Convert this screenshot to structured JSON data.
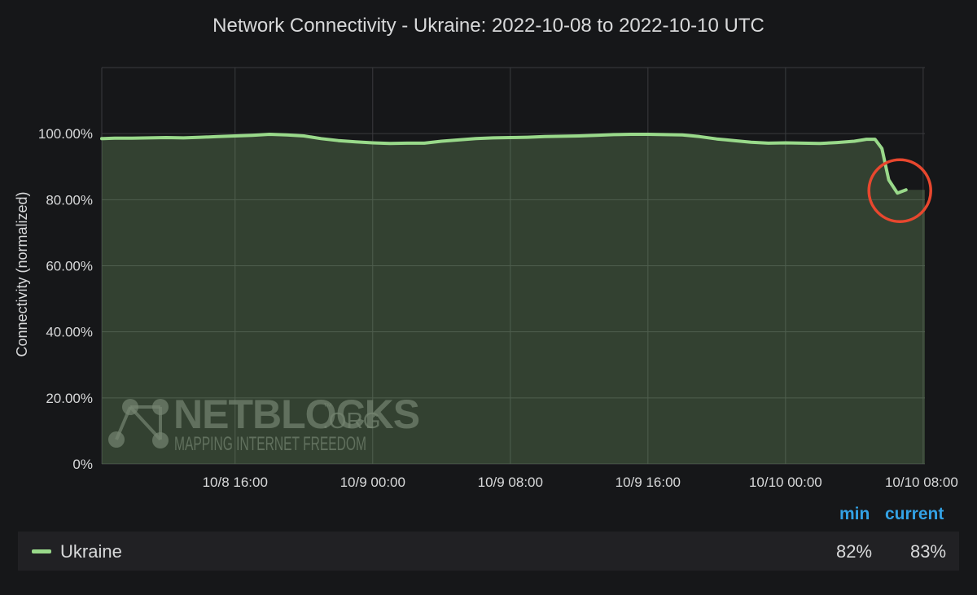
{
  "chart_data": {
    "type": "area",
    "title": "Network Connectivity - Ukraine: 2022-10-08 to 2022-10-10 UTC",
    "ylabel": "Connectivity (normalized)",
    "xlabel": "",
    "ylim": [
      0,
      1.2
    ],
    "yticks": [
      "0%",
      "20.00%",
      "40.00%",
      "60.00%",
      "80.00%",
      "100.00%"
    ],
    "ytick_values": [
      0,
      0.2,
      0.4,
      0.6,
      0.8,
      1.0
    ],
    "xticks": [
      "10/8 16:00",
      "10/9 00:00",
      "10/9 08:00",
      "10/9 16:00",
      "10/10 00:00",
      "10/10 08:00"
    ],
    "xtick_hours": [
      16,
      24,
      32,
      40,
      48,
      56
    ],
    "xlim_hours": [
      8.25,
      56.1
    ],
    "x_unit": "hours since 2022-10-08 00:00 UTC",
    "grid": true,
    "series": [
      {
        "name": "Ukraine",
        "color": "#99d98a",
        "x": [
          8.25,
          9,
          10,
          11,
          12,
          13,
          14,
          15,
          16,
          17,
          18,
          19,
          20,
          21,
          22,
          23,
          24,
          25,
          26,
          27,
          28,
          29,
          30,
          31,
          32,
          33,
          34,
          35,
          36,
          37,
          38,
          39,
          40,
          41,
          42,
          43,
          44,
          45,
          46,
          47,
          48,
          49,
          50,
          51,
          52,
          52.7,
          53.2,
          53.6,
          54.0,
          54.5,
          55.0
        ],
        "y": [
          0.985,
          0.986,
          0.986,
          0.987,
          0.988,
          0.987,
          0.989,
          0.991,
          0.993,
          0.995,
          0.998,
          0.996,
          0.993,
          0.985,
          0.979,
          0.975,
          0.972,
          0.97,
          0.971,
          0.971,
          0.977,
          0.981,
          0.985,
          0.987,
          0.988,
          0.989,
          0.991,
          0.992,
          0.993,
          0.995,
          0.997,
          0.998,
          0.998,
          0.997,
          0.996,
          0.991,
          0.984,
          0.979,
          0.974,
          0.971,
          0.972,
          0.971,
          0.97,
          0.973,
          0.977,
          0.983,
          0.983,
          0.955,
          0.86,
          0.82,
          0.83
        ]
      }
    ],
    "annotation": "red-circle-highlighting-drop",
    "annotation_color": "#e8472e"
  },
  "watermark": {
    "brand": "NETBLOCKS",
    "tm": "™",
    "suffix": ".ORG",
    "tagline": "MAPPING INTERNET FREEDOM"
  },
  "legend": {
    "headers": {
      "min": "min",
      "current": "current"
    },
    "rows": [
      {
        "name": "Ukraine",
        "color": "#99d98a",
        "min": "82%",
        "current": "83%"
      }
    ]
  }
}
